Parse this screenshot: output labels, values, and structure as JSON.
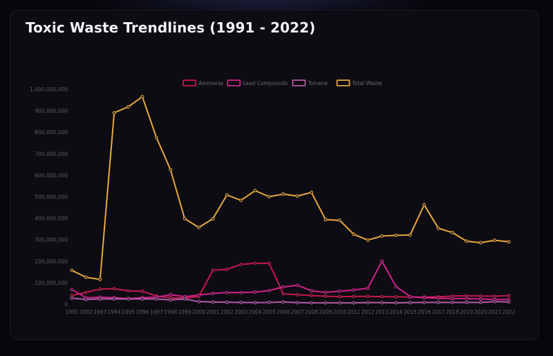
{
  "page": {
    "title": "Toxic Waste Trendlines (1991 - 2022)"
  },
  "chart_data": {
    "type": "line",
    "title": "Toxic Waste Trendlines (1991 - 2022)",
    "xlabel": "",
    "ylabel": "",
    "ylim": [
      0,
      1000000000
    ],
    "yticks": [
      0,
      100000000,
      200000000,
      300000000,
      400000000,
      500000000,
      600000000,
      700000000,
      800000000,
      900000000,
      1000000000
    ],
    "ytick_labels": [
      "0",
      "100,000,000",
      "200,000,000",
      "300,000,000",
      "400,000,000",
      "500,000,000",
      "600,000,000",
      "700,000,000",
      "800,000,000",
      "900,000,000",
      "1,000,000,000"
    ],
    "grid": false,
    "legend_position": "top",
    "categories": [
      "1991",
      "1992",
      "1993",
      "1994",
      "1995",
      "1996",
      "1997",
      "1998",
      "1999",
      "2000",
      "2001",
      "2002",
      "2003",
      "2004",
      "2005",
      "2006",
      "2007",
      "2008",
      "2009",
      "2010",
      "2011",
      "2012",
      "2013",
      "2014",
      "2015",
      "2016",
      "2017",
      "2018",
      "2019",
      "2020",
      "2021",
      "2022"
    ],
    "series": [
      {
        "name": "Ammonia",
        "color": "#c8174a",
        "values": [
          40000000,
          55000000,
          70000000,
          72000000,
          62000000,
          60000000,
          38000000,
          30000000,
          28000000,
          35000000,
          158000000,
          162000000,
          185000000,
          190000000,
          190000000,
          48000000,
          44000000,
          40000000,
          37000000,
          35000000,
          36000000,
          36000000,
          35000000,
          34000000,
          33000000,
          33000000,
          34000000,
          38000000,
          39000000,
          38000000,
          37000000,
          40000000
        ]
      },
      {
        "name": "Lead Compounds",
        "color": "#d1238a",
        "values": [
          68000000,
          30000000,
          32000000,
          30000000,
          26000000,
          30000000,
          33000000,
          44000000,
          35000000,
          42000000,
          50000000,
          54000000,
          54000000,
          56000000,
          63000000,
          80000000,
          88000000,
          62000000,
          55000000,
          60000000,
          66000000,
          74000000,
          200000000,
          82000000,
          35000000,
          30000000,
          28000000,
          26000000,
          26000000,
          24000000,
          22000000,
          22000000
        ]
      },
      {
        "name": "Toluene",
        "color": "#b45ca8",
        "values": [
          28000000,
          22000000,
          24000000,
          24000000,
          24000000,
          24000000,
          24000000,
          20000000,
          24000000,
          12000000,
          10000000,
          9000000,
          8000000,
          7000000,
          8000000,
          10000000,
          7000000,
          6000000,
          6000000,
          6000000,
          6000000,
          7000000,
          7000000,
          6000000,
          7000000,
          8000000,
          8000000,
          8000000,
          8000000,
          8000000,
          12000000,
          10000000
        ]
      },
      {
        "name": "Total Waste",
        "color": "#e8a83e",
        "values": [
          157000000,
          125000000,
          115000000,
          890000000,
          918000000,
          965000000,
          775000000,
          625000000,
          398000000,
          357000000,
          397000000,
          508000000,
          483000000,
          528000000,
          500000000,
          512000000,
          503000000,
          520000000,
          393000000,
          390000000,
          325000000,
          298000000,
          317000000,
          320000000,
          322000000,
          462000000,
          353000000,
          333000000,
          293000000,
          286000000,
          297000000,
          290000000
        ]
      }
    ]
  }
}
